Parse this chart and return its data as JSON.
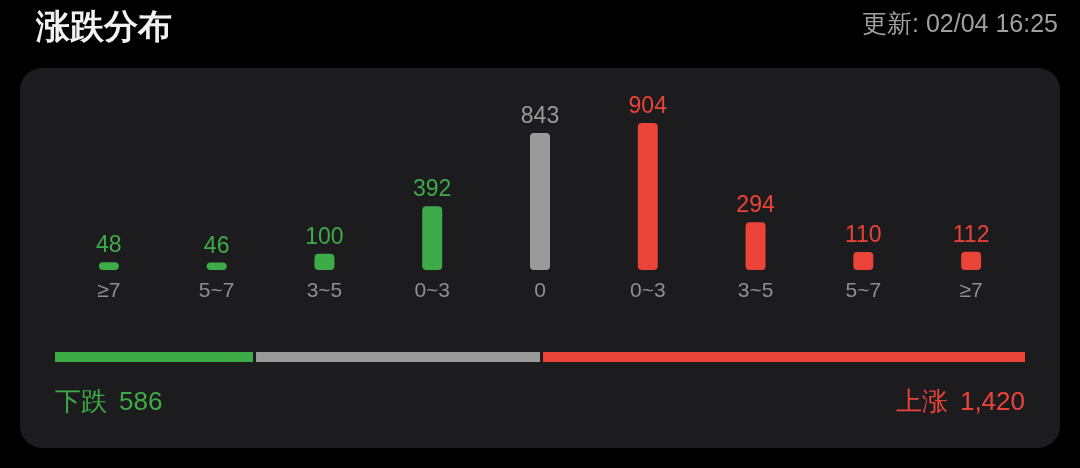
{
  "chart_data": [
    {
      "type": "bar",
      "title": "涨跌分布",
      "annotations": [
        "更新: 02/04 16:25"
      ],
      "categories": [
        "≥7",
        "5~7",
        "3~5",
        "0~3",
        "0",
        "0~3",
        "3~5",
        "5~7",
        "≥7"
      ],
      "values": [
        48,
        46,
        100,
        392,
        843,
        904,
        294,
        110,
        112
      ],
      "colors": [
        "#3dab48",
        "#3dab48",
        "#3dab48",
        "#3dab48",
        "#9a9a9a",
        "#ea4439",
        "#ea4439",
        "#ea4439",
        "#ea4439"
      ],
      "data_labels": true
    },
    {
      "type": "other",
      "categories": [
        "下跌",
        null,
        "上涨"
      ],
      "values": [
        586,
        null,
        1420
      ],
      "value_labels": [
        "586",
        null,
        "1,420"
      ],
      "colors": [
        "#3dab48",
        "#9a9a9a",
        "#ea4439"
      ]
    }
  ]
}
